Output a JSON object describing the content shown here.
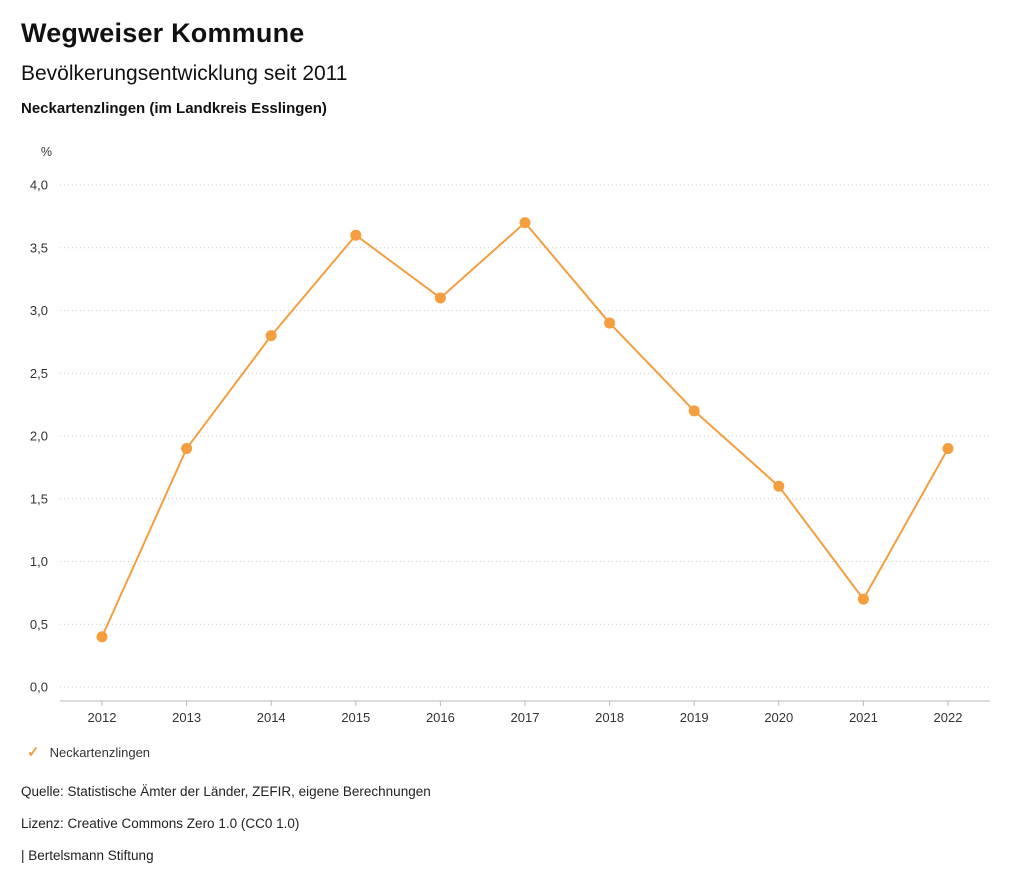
{
  "header": {
    "title": "Wegweiser Kommune",
    "subtitle": "Bevölkerungsentwicklung seit 2011",
    "region": "Neckartenzlingen (im Landkreis Esslingen)"
  },
  "chart_data": {
    "type": "line",
    "title": "Bevölkerungsentwicklung seit 2011",
    "x": [
      2012,
      2013,
      2014,
      2015,
      2016,
      2017,
      2018,
      2019,
      2020,
      2021,
      2022
    ],
    "series": [
      {
        "name": "Neckartenzlingen",
        "values": [
          0.4,
          1.9,
          2.8,
          3.6,
          3.1,
          3.7,
          2.9,
          2.2,
          1.6,
          0.7,
          1.9
        ]
      }
    ],
    "xlabel": "",
    "ylabel": "%",
    "ylim": [
      0.0,
      4.0
    ],
    "ytick_step": 0.5,
    "ytick_labels": [
      "0,0",
      "0,5",
      "1,0",
      "1,5",
      "2,0",
      "2,5",
      "3,0",
      "3,5",
      "4,0"
    ],
    "grid": "horizontal-dotted",
    "legend_position": "bottom-left",
    "line_color": "#F49E3F",
    "marker": "circle",
    "axis_color": "#b8b8b8",
    "grid_color": "#c9c9c9",
    "tick_text_color": "#333333"
  },
  "legend": {
    "check_icon": "✓",
    "label": "Neckartenzlingen"
  },
  "footer": {
    "source": "Quelle: Statistische Ämter der Länder, ZEFIR, eigene Berechnungen",
    "license": "Lizenz: Creative Commons Zero 1.0 (CC0 1.0)",
    "attribution": "| Bertelsmann Stiftung"
  }
}
